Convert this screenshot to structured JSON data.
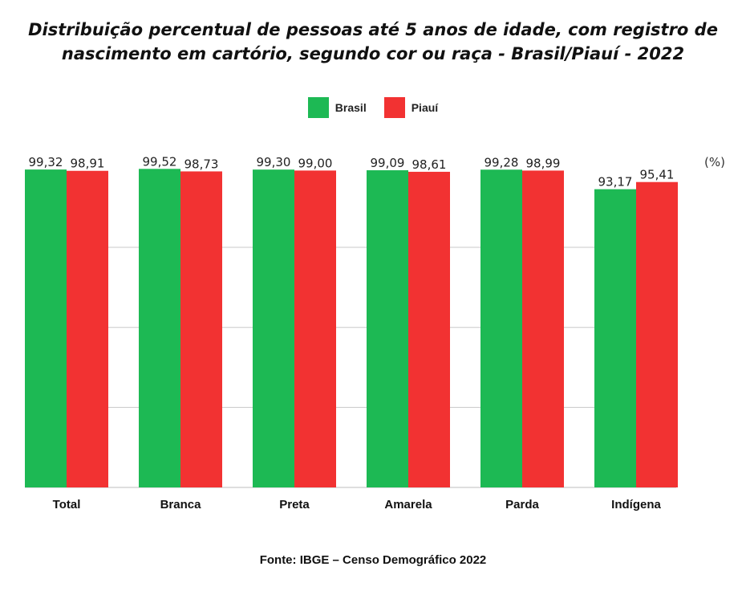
{
  "chart_data": {
    "type": "bar",
    "title": "Distribuição percentual de pessoas até 5 anos de idade, com registro de nascimento em cartório, segundo cor ou raça - Brasil/Piauí - 2022",
    "title_lines": [
      "Distribuição percentual de pessoas até 5 anos de idade, com registro de",
      "nascimento em cartório, segundo cor ou raça - Brasil/Piauí - 2022"
    ],
    "unit_label": "(%)",
    "categories": [
      "Total",
      "Branca",
      "Preta",
      "Amarela",
      "Parda",
      "Indígena"
    ],
    "series": [
      {
        "name": "Brasil",
        "color": "#1db954",
        "values": [
          99.32,
          99.52,
          99.3,
          99.09,
          99.28,
          93.17
        ],
        "labels": [
          "99,32",
          "99,52",
          "99,30",
          "99,09",
          "99,28",
          "93,17"
        ]
      },
      {
        "name": "Piauí",
        "color": "#f23232",
        "values": [
          98.91,
          98.73,
          99.0,
          98.61,
          98.99,
          95.41
        ],
        "labels": [
          "98,91",
          "98,73",
          "99,00",
          "98,61",
          "98,99",
          "95,41"
        ]
      }
    ],
    "legend_position": "top-center",
    "grid": true,
    "source": "Fonte: IBGE – Censo Demográfico 2022"
  }
}
